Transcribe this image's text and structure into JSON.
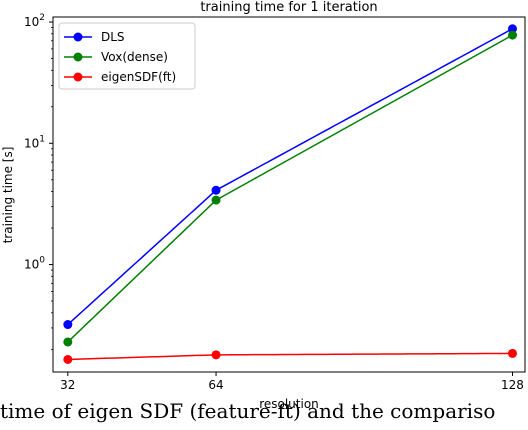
{
  "chart_data": {
    "type": "line",
    "title": "training time for 1 iteration",
    "xlabel": "resolution",
    "ylabel": "training time [s]",
    "x": [
      32,
      64,
      128
    ],
    "x_tick_labels": [
      "32",
      "64",
      "128"
    ],
    "xscale": "linear",
    "yscale": "log",
    "ylim": [
      0.13,
      110
    ],
    "y_ticks": [
      {
        "value": 1,
        "base": "10",
        "exp": "0"
      },
      {
        "value": 10,
        "base": "10",
        "exp": "1"
      },
      {
        "value": 100,
        "base": "10",
        "exp": "2"
      }
    ],
    "grid": false,
    "legend_position": "top-left",
    "series": [
      {
        "name": "DLS",
        "color": "#0000ff",
        "values": [
          0.32,
          4.1,
          88
        ]
      },
      {
        "name": "Vox(dense)",
        "color": "#008000",
        "values": [
          0.23,
          3.4,
          78
        ]
      },
      {
        "name": "eigenSDF(ft)",
        "color": "#ff0000",
        "values": [
          0.165,
          0.18,
          0.185
        ]
      }
    ]
  },
  "caption": "time of eigen SDF (feature-ft) and the compariso"
}
